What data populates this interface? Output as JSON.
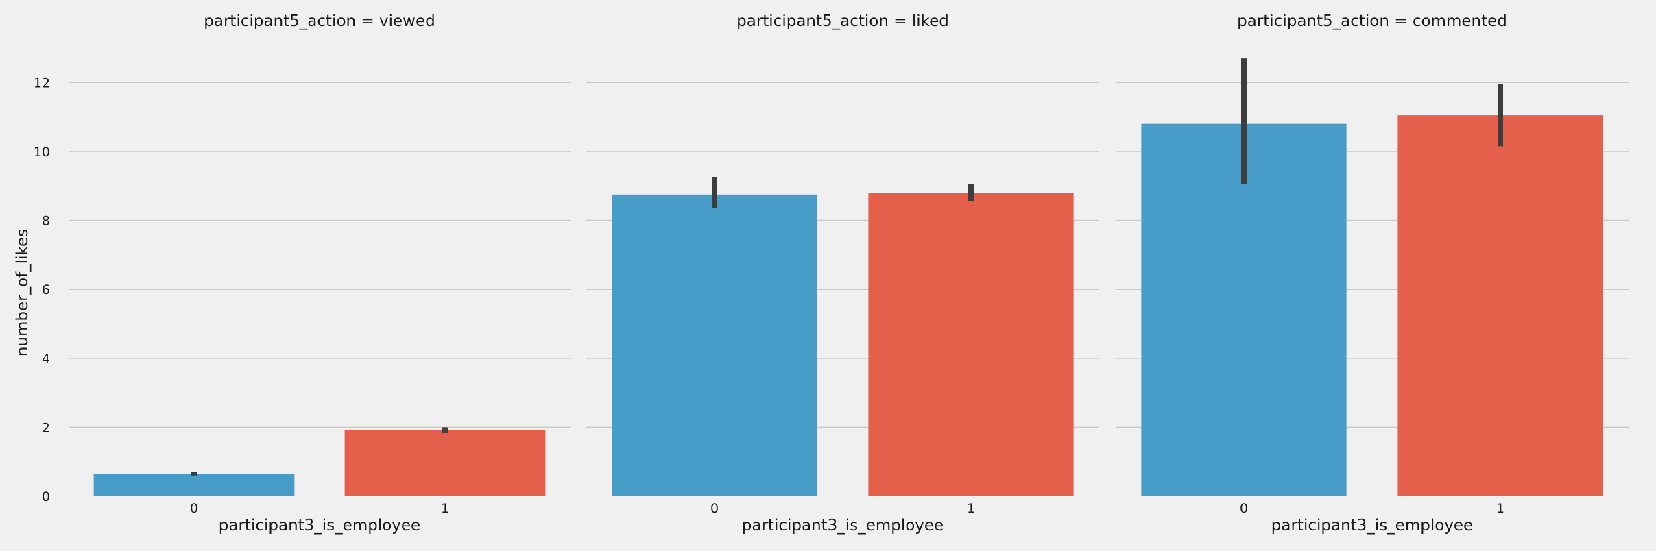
{
  "chart_data": [
    {
      "type": "bar",
      "title": "participant5_action = viewed",
      "xlabel": "participant3_is_employee",
      "ylabel": "number_of_likes",
      "categories": [
        "0",
        "1"
      ],
      "values": [
        0.65,
        1.92
      ],
      "error_low": [
        0.6,
        1.83
      ],
      "error_high": [
        0.7,
        2.0
      ],
      "colors": [
        "#479cc8",
        "#e5604a"
      ],
      "ylim": [
        0,
        13
      ],
      "yticks": [
        0,
        2,
        4,
        6,
        8,
        10,
        12
      ],
      "grid": true
    },
    {
      "type": "bar",
      "title": "participant5_action = liked",
      "xlabel": "participant3_is_employee",
      "ylabel": "",
      "categories": [
        "0",
        "1"
      ],
      "values": [
        8.75,
        8.8
      ],
      "error_low": [
        8.35,
        8.55
      ],
      "error_high": [
        9.25,
        9.05
      ],
      "colors": [
        "#479cc8",
        "#e5604a"
      ],
      "ylim": [
        0,
        13
      ],
      "yticks": [
        0,
        2,
        4,
        6,
        8,
        10,
        12
      ],
      "grid": true
    },
    {
      "type": "bar",
      "title": "participant5_action = commented",
      "xlabel": "participant3_is_employee",
      "ylabel": "",
      "categories": [
        "0",
        "1"
      ],
      "values": [
        10.8,
        11.05
      ],
      "error_low": [
        9.05,
        10.15
      ],
      "error_high": [
        12.7,
        11.95
      ],
      "colors": [
        "#479cc8",
        "#e5604a"
      ],
      "ylim": [
        0,
        13
      ],
      "yticks": [
        0,
        2,
        4,
        6,
        8,
        10,
        12
      ],
      "grid": true
    }
  ],
  "style": {
    "background": "#f0f0f0",
    "grid_color": "#cbcbcb",
    "error_color": "#3d3d3d",
    "text_color": "#1a1a1a"
  }
}
